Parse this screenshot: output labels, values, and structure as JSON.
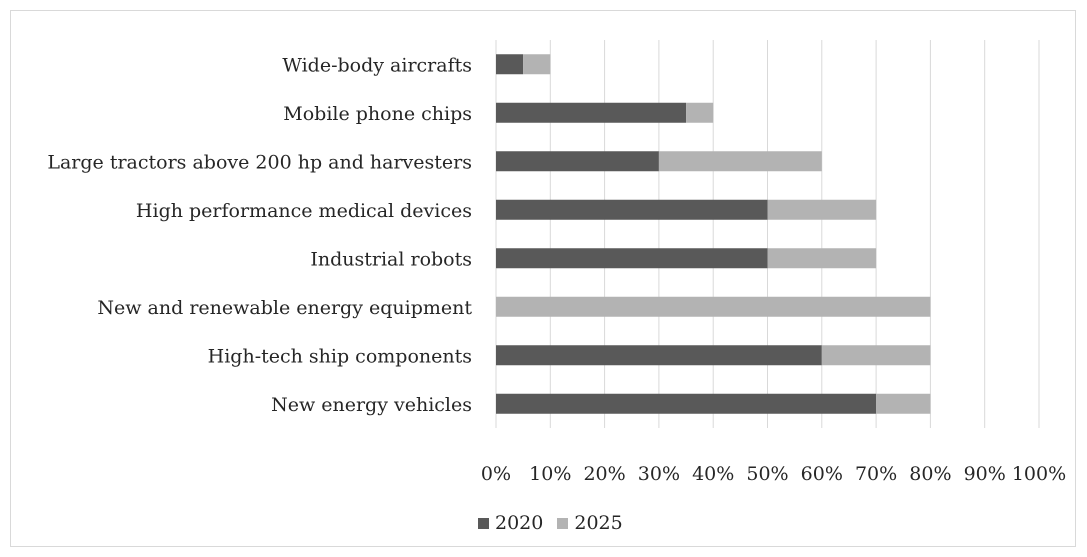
{
  "chart_data": {
    "type": "bar",
    "orientation": "horizontal",
    "stacked": true,
    "categories": [
      "Wide-body aircrafts",
      "Mobile phone chips",
      "Large tractors above 200 hp and harvesters",
      "High performance medical devices",
      "Industrial robots",
      "New and renewable energy equipment",
      "High-tech ship components",
      "New energy vehicles"
    ],
    "series": [
      {
        "name": "2020",
        "color": "#595959",
        "values": [
          5,
          35,
          30,
          50,
          50,
          0,
          60,
          70
        ]
      },
      {
        "name": "2025",
        "color": "#b3b3b3",
        "values": [
          5,
          5,
          30,
          20,
          20,
          80,
          20,
          10
        ]
      }
    ],
    "xlim": [
      0,
      100
    ],
    "x_ticks": [
      "0%",
      "10%",
      "20%",
      "30%",
      "40%",
      "50%",
      "60%",
      "70%",
      "80%",
      "90%",
      "100%"
    ],
    "grid": "vertical",
    "legend_position": "bottom",
    "title": "",
    "xlabel": "",
    "ylabel": ""
  }
}
